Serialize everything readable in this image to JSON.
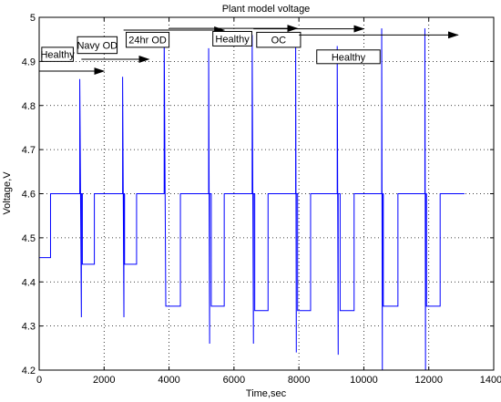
{
  "chart_data": {
    "type": "line",
    "title": "Plant model voltage",
    "xlabel": "Time,sec",
    "ylabel": "Voltage,V",
    "xlim": [
      0,
      14000
    ],
    "ylim": [
      4.2,
      5.0
    ],
    "xticks": [
      0,
      2000,
      4000,
      6000,
      8000,
      10000,
      12000,
      14000
    ],
    "yticks": [
      4.2,
      4.3,
      4.4,
      4.5,
      4.6,
      4.7,
      4.8,
      4.9,
      5.0
    ],
    "xtick_labels": [
      "0",
      "2000",
      "4000",
      "6000",
      "8000",
      "10000",
      "12000",
      "14000"
    ],
    "ytick_labels": [
      "4.2",
      "4.3",
      "4.4",
      "4.5",
      "4.6",
      "4.7",
      "4.8",
      "4.9",
      "5"
    ],
    "grid": "dotted",
    "line_color": "#0000ff",
    "series": [
      {
        "x": [
          0,
          350,
          350,
          1250,
          1250,
          1300,
          1300,
          1330,
          1330,
          1700,
          1700,
          2570,
          2570,
          2610,
          2610,
          2630,
          2630,
          3000,
          3000,
          3850,
          3850,
          3900,
          3900,
          4350,
          4350,
          5220,
          5220,
          5250,
          5250,
          5300,
          5300,
          5700,
          5700,
          6560,
          6560,
          6600,
          6600,
          6640,
          6640,
          7050,
          7050,
          7900,
          7900,
          7920,
          7920,
          7960,
          7960,
          8360,
          8360,
          9180,
          9180,
          9210,
          9210,
          9270,
          9270,
          9700,
          9700,
          10550,
          10550,
          10570,
          10570,
          10600,
          10600,
          11050,
          11050,
          11880,
          11880,
          11900,
          11900,
          11930,
          11930,
          12350,
          12350,
          13100
        ],
        "y": [
          4.455,
          4.455,
          4.6,
          4.6,
          4.86,
          4.32,
          4.6,
          4.6,
          4.44,
          4.44,
          4.6,
          4.6,
          4.865,
          4.32,
          4.6,
          4.6,
          4.44,
          4.44,
          4.6,
          4.6,
          4.96,
          4.345,
          4.345,
          4.345,
          4.6,
          4.6,
          4.93,
          4.26,
          4.6,
          4.6,
          4.345,
          4.345,
          4.6,
          4.6,
          4.96,
          4.26,
          4.6,
          4.6,
          4.335,
          4.335,
          4.6,
          4.6,
          4.96,
          4.24,
          4.6,
          4.6,
          4.335,
          4.335,
          4.6,
          4.6,
          4.935,
          4.235,
          4.6,
          4.6,
          4.335,
          4.335,
          4.6,
          4.6,
          4.975,
          4.2,
          4.6,
          4.6,
          4.345,
          4.345,
          4.6,
          4.6,
          4.975,
          4.2,
          4.6,
          4.6,
          4.345,
          4.345,
          4.6,
          4.6
        ]
      }
    ],
    "annotations": [
      {
        "text": "Healthy",
        "box_x": [
          80,
          1050
        ],
        "box_y": [
          4.9,
          4.932
        ],
        "arrow_x": [
          0,
          2000
        ],
        "arrow_y": 4.878
      },
      {
        "text": "Navy OD",
        "box_x": [
          1180,
          2400
        ],
        "box_y": [
          4.918,
          4.956
        ],
        "arrow_x": [
          1300,
          3380
        ],
        "arrow_y": 4.905
      },
      {
        "text": "24hr OD",
        "box_x": [
          2680,
          4000
        ],
        "box_y": [
          4.932,
          4.966
        ],
        "arrow_x": [
          2600,
          5700
        ],
        "arrow_y": 4.971
      },
      {
        "text": "Healthy",
        "box_x": [
          5350,
          6550
        ],
        "box_y": [
          4.935,
          4.968
        ],
        "arrow_x": [
          4000,
          7950
        ],
        "arrow_y": 4.975
      },
      {
        "text": "OC",
        "box_x": [
          6700,
          8050
        ],
        "box_y": [
          4.932,
          4.966
        ],
        "arrow_x": [
          6600,
          10000
        ],
        "arrow_y": 4.974
      },
      {
        "text": "Healthy",
        "box_x": [
          8550,
          10500
        ],
        "box_y": [
          4.895,
          4.926
        ],
        "arrow_x": [
          8000,
          12900
        ],
        "arrow_y": 4.96
      }
    ]
  }
}
